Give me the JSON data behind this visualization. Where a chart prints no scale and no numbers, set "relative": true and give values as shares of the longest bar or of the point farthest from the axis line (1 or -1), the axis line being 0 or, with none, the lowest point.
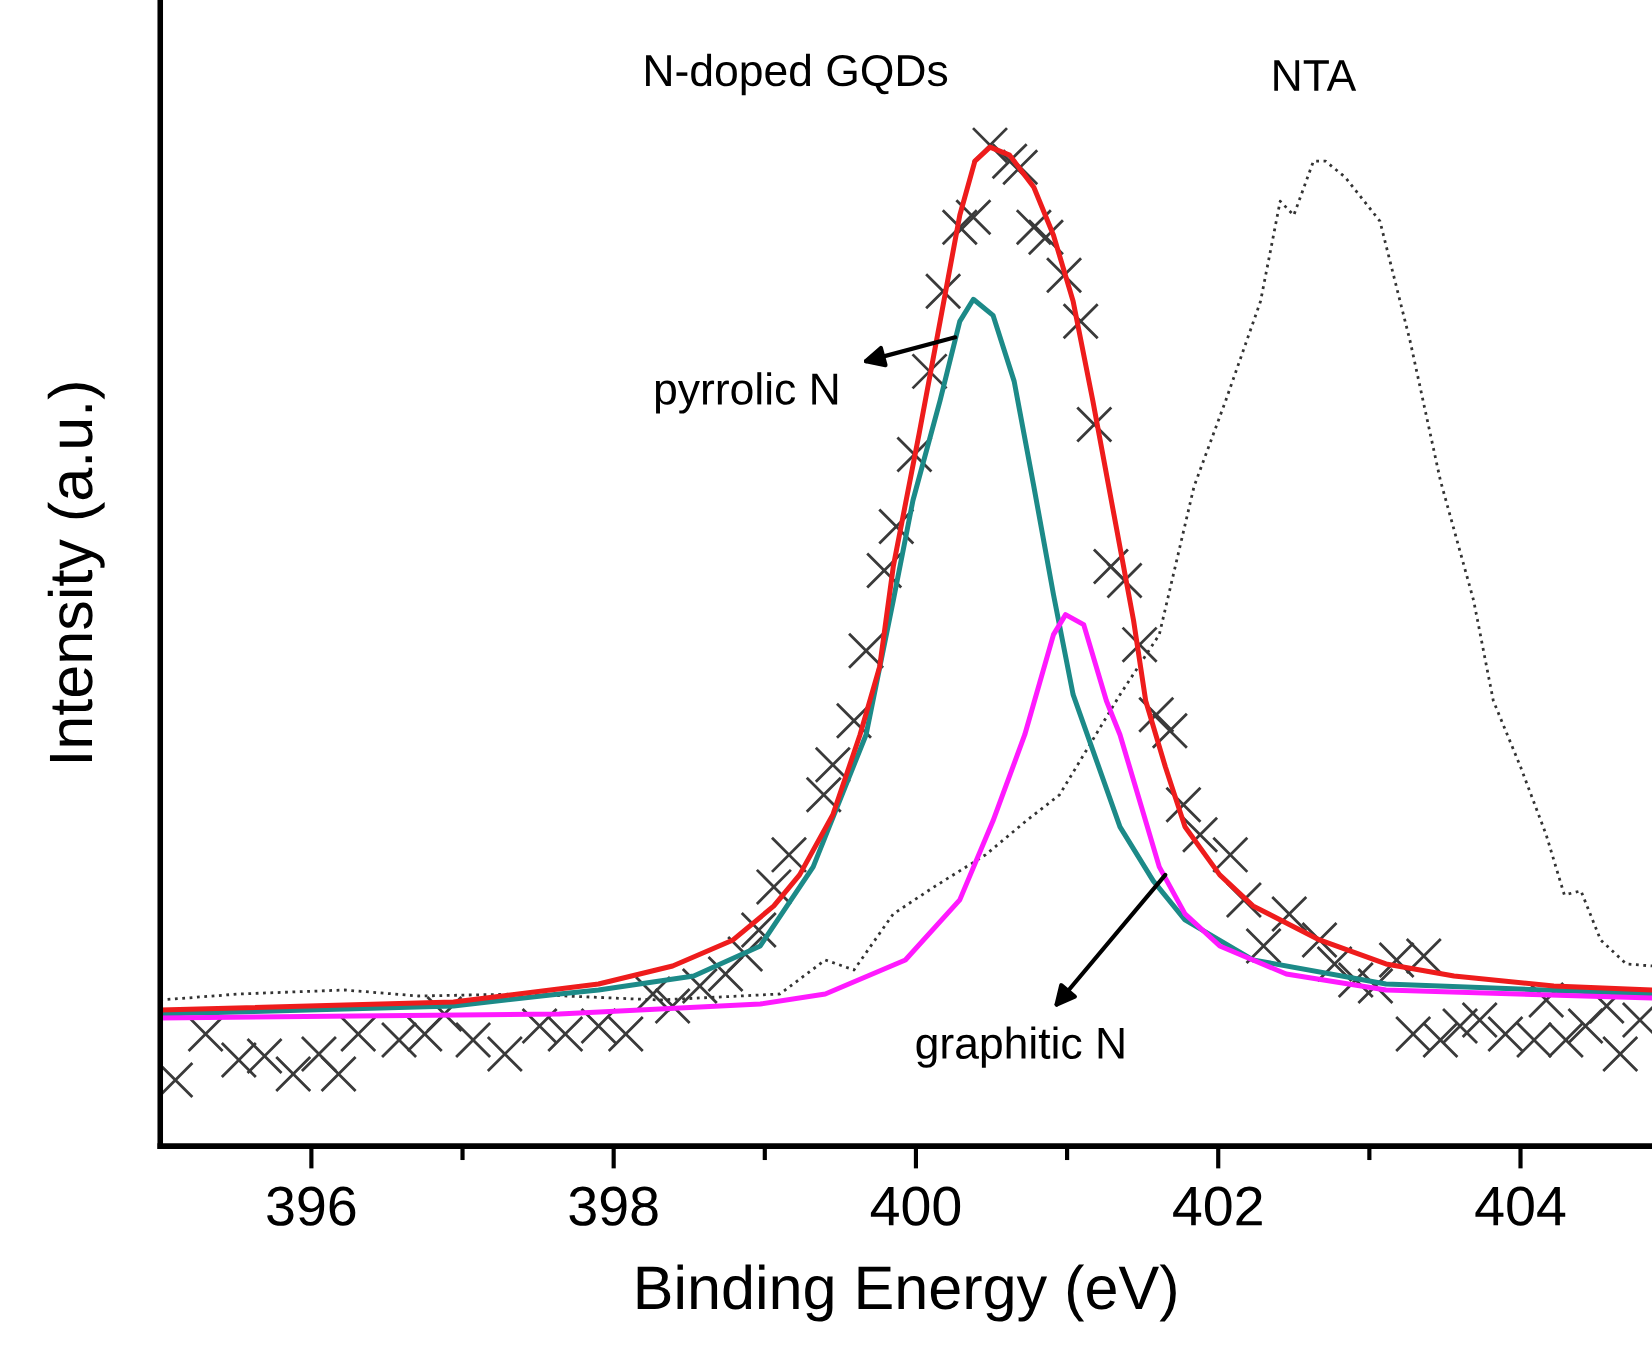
{
  "chart_data": {
    "type": "line",
    "relative": true,
    "xlabel": "Binding Energy (eV)",
    "ylabel": "Intensity (a.u.)",
    "xlim": [
      395,
      404.87
    ],
    "xticks": [
      396,
      {
        "value": 397,
        "label": null
      },
      398,
      {
        "value": 399,
        "label": null
      },
      400,
      {
        "value": 401,
        "label": null
      },
      402,
      {
        "value": 403,
        "label": null
      },
      404
    ],
    "tick_labels": "x",
    "grid": false,
    "legend": false,
    "series": [
      {
        "name": "NTA",
        "type": "line",
        "line_style": "dotted",
        "color": "#333333",
        "x": [
          395.0,
          395.52,
          396.22,
          396.71,
          397.38,
          398.3,
          399.1,
          399.4,
          399.59,
          399.85,
          400.12,
          400.46,
          400.73,
          400.95,
          401.35,
          401.61,
          401.84,
          402.05,
          402.28,
          402.41,
          402.5,
          402.63,
          402.71,
          402.84,
          403.07,
          403.27,
          403.47,
          403.69,
          403.82,
          404.0,
          404.17,
          404.29,
          404.4,
          404.53,
          404.7,
          404.87
        ],
        "values": [
          0.146,
          0.152,
          0.156,
          0.15,
          0.152,
          0.146,
          0.152,
          0.186,
          0.176,
          0.232,
          0.259,
          0.291,
          0.325,
          0.351,
          0.451,
          0.511,
          0.659,
          0.745,
          0.844,
          0.944,
          0.93,
          0.984,
          0.984,
          0.968,
          0.924,
          0.804,
          0.665,
          0.545,
          0.445,
          0.379,
          0.311,
          0.251,
          0.255,
          0.206,
          0.182,
          0.18
        ]
      },
      {
        "name": "N-doped GQDs",
        "type": "scatter",
        "marker": "cross",
        "color": "#3a3a3a",
        "x": [
          395.1,
          395.3,
          395.52,
          395.69,
          395.88,
          396.05,
          396.18,
          396.31,
          396.58,
          396.75,
          396.88,
          397.07,
          397.28,
          397.51,
          397.68,
          397.9,
          398.08,
          398.26,
          398.39,
          398.57,
          398.74,
          398.87,
          398.96,
          399.06,
          399.16,
          399.39,
          399.45,
          399.59,
          399.67,
          399.79,
          399.87,
          399.99,
          400.09,
          400.18,
          400.29,
          400.38,
          400.49,
          400.62,
          400.69,
          400.78,
          400.86,
          400.98,
          401.09,
          401.18,
          401.29,
          401.38,
          401.48,
          401.59,
          401.68,
          401.77,
          401.88,
          402.08,
          402.17,
          402.3,
          402.47,
          402.67,
          402.77,
          402.91,
          403.04,
          403.18,
          403.36,
          403.29,
          403.47,
          403.6,
          403.73,
          403.9,
          404.09,
          404.17,
          404.3,
          404.43,
          404.57,
          404.66,
          404.79
        ],
        "values": [
          0.066,
          0.112,
          0.086,
          0.09,
          0.072,
          0.092,
          0.072,
          0.112,
          0.106,
          0.112,
          0.132,
          0.106,
          0.092,
          0.12,
          0.112,
          0.12,
          0.112,
          0.152,
          0.14,
          0.16,
          0.172,
          0.192,
          0.216,
          0.259,
          0.291,
          0.351,
          0.381,
          0.425,
          0.495,
          0.575,
          0.619,
          0.691,
          0.774,
          0.854,
          0.918,
          0.928,
          1.0,
          0.984,
          0.978,
          0.918,
          0.908,
          0.87,
          0.824,
          0.721,
          0.579,
          0.565,
          0.501,
          0.431,
          0.415,
          0.341,
          0.311,
          0.291,
          0.246,
          0.2,
          0.232,
          0.206,
          0.182,
          0.166,
          0.16,
          0.186,
          0.19,
          0.112,
          0.106,
          0.12,
          0.126,
          0.112,
          0.106,
          0.146,
          0.106,
          0.12,
          0.14,
          0.092,
          0.126
        ]
      },
      {
        "line_style": "solid",
        "color": "#1c8a88",
        "x": [
          395.0,
          396.94,
          397.64,
          397.9,
          398.53,
          398.97,
          399.32,
          399.67,
          399.85,
          399.98,
          400.16,
          400.29,
          400.38,
          400.51,
          400.65,
          400.78,
          400.91,
          401.04,
          401.35,
          401.57,
          401.78,
          402.23,
          403.11,
          404.87
        ],
        "values": [
          0.132,
          0.14,
          0.152,
          0.156,
          0.17,
          0.2,
          0.279,
          0.411,
          0.545,
          0.645,
          0.745,
          0.824,
          0.846,
          0.83,
          0.764,
          0.659,
          0.551,
          0.451,
          0.319,
          0.265,
          0.226,
          0.186,
          0.162,
          0.152
        ]
      },
      {
        "line_style": "solid",
        "color": "#ff1aff",
        "x": [
          395.0,
          397.64,
          398.97,
          399.4,
          399.93,
          400.29,
          400.51,
          400.72,
          400.91,
          400.99,
          401.11,
          401.26,
          401.35,
          401.48,
          401.61,
          401.78,
          402.01,
          402.45,
          403.11,
          404.87
        ],
        "values": [
          0.128,
          0.132,
          0.142,
          0.152,
          0.186,
          0.246,
          0.325,
          0.411,
          0.511,
          0.531,
          0.521,
          0.445,
          0.411,
          0.345,
          0.279,
          0.232,
          0.2,
          0.172,
          0.156,
          0.148
        ]
      },
      {
        "line_style": "solid",
        "color": "#ee1c1c",
        "x": [
          395.0,
          396.94,
          397.9,
          398.39,
          398.79,
          399.06,
          399.23,
          399.45,
          399.63,
          399.76,
          399.85,
          400.02,
          400.16,
          400.29,
          400.39,
          400.49,
          400.62,
          400.78,
          400.91,
          401.04,
          401.17,
          401.31,
          401.44,
          401.52,
          401.65,
          401.78,
          402.01,
          402.23,
          402.67,
          403.11,
          403.56,
          404.22,
          404.87
        ],
        "values": [
          0.136,
          0.144,
          0.162,
          0.18,
          0.206,
          0.24,
          0.271,
          0.331,
          0.411,
          0.479,
          0.579,
          0.711,
          0.824,
          0.93,
          0.984,
          0.998,
          0.99,
          0.958,
          0.91,
          0.844,
          0.745,
          0.631,
          0.525,
          0.445,
          0.379,
          0.319,
          0.271,
          0.24,
          0.206,
          0.182,
          0.17,
          0.16,
          0.156
        ]
      }
    ],
    "annotations": [
      {
        "text": "pyrrolic N",
        "x": 400.26,
        "y": 0.808
      },
      {
        "text": "graphitic N",
        "x": 401.65,
        "y": 0.271
      }
    ]
  }
}
